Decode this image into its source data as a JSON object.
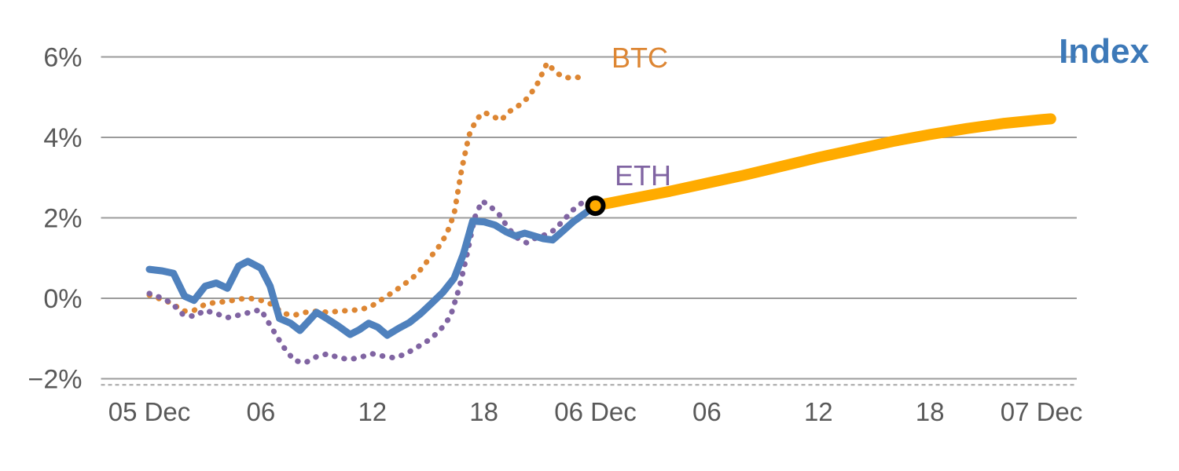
{
  "chart_data": {
    "type": "line",
    "title": "",
    "x_unit": "hours from 05 Dec 00:00",
    "xlim": [
      -2.6,
      49.9
    ],
    "ylim": [
      -2.55,
      6.6
    ],
    "grid": "horizontal",
    "x_ticks": [
      {
        "pos": 0,
        "label": "05 Dec"
      },
      {
        "pos": 6,
        "label": "06"
      },
      {
        "pos": 12,
        "label": "12"
      },
      {
        "pos": 18,
        "label": "18"
      },
      {
        "pos": 24,
        "label": "06 Dec"
      },
      {
        "pos": 30,
        "label": "06"
      },
      {
        "pos": 36,
        "label": "12"
      },
      {
        "pos": 42,
        "label": "18"
      },
      {
        "pos": 48,
        "label": "07 Dec"
      }
    ],
    "y_ticks": [
      {
        "pos": 6,
        "label": "6%"
      },
      {
        "pos": 4,
        "label": "4%"
      },
      {
        "pos": 2,
        "label": "2%"
      },
      {
        "pos": 0,
        "label": "0%"
      },
      {
        "pos": -2,
        "label": "−2%"
      }
    ],
    "axis_line": {
      "pos": -2.15,
      "style": "dashed"
    },
    "series": [
      {
        "name": "BTC",
        "color": "#dd8633",
        "style": "dotted",
        "width": 7,
        "points": [
          [
            0,
            0.08
          ],
          [
            0.6,
            -0.02
          ],
          [
            1.2,
            -0.12
          ],
          [
            1.8,
            -0.32
          ],
          [
            2.4,
            -0.3
          ],
          [
            3.0,
            -0.15
          ],
          [
            3.6,
            -0.1
          ],
          [
            4.2,
            -0.08
          ],
          [
            4.8,
            -0.02
          ],
          [
            5.4,
            0.0
          ],
          [
            6.0,
            -0.05
          ],
          [
            6.6,
            -0.15
          ],
          [
            7.2,
            -0.38
          ],
          [
            7.8,
            -0.42
          ],
          [
            8.4,
            -0.35
          ],
          [
            9.0,
            -0.32
          ],
          [
            9.6,
            -0.35
          ],
          [
            10.2,
            -0.32
          ],
          [
            10.8,
            -0.3
          ],
          [
            11.4,
            -0.28
          ],
          [
            12.0,
            -0.18
          ],
          [
            12.6,
            0.0
          ],
          [
            13.2,
            0.18
          ],
          [
            13.8,
            0.38
          ],
          [
            14.4,
            0.6
          ],
          [
            15.0,
            0.95
          ],
          [
            15.6,
            1.3
          ],
          [
            16.0,
            1.6
          ],
          [
            16.4,
            2.1
          ],
          [
            16.8,
            3.2
          ],
          [
            17.2,
            4.05
          ],
          [
            17.6,
            4.45
          ],
          [
            18.0,
            4.62
          ],
          [
            18.4,
            4.55
          ],
          [
            18.9,
            4.42
          ],
          [
            19.4,
            4.65
          ],
          [
            19.9,
            4.8
          ],
          [
            20.4,
            5.0
          ],
          [
            20.9,
            5.35
          ],
          [
            21.4,
            5.85
          ],
          [
            21.9,
            5.6
          ],
          [
            22.4,
            5.48
          ],
          [
            23.0,
            5.5
          ],
          [
            23.5,
            5.42
          ]
        ]
      },
      {
        "name": "ETH",
        "color": "#8064a2",
        "style": "dotted",
        "width": 7,
        "points": [
          [
            0,
            0.12
          ],
          [
            0.6,
            0.02
          ],
          [
            1.2,
            -0.12
          ],
          [
            1.8,
            -0.4
          ],
          [
            2.4,
            -0.45
          ],
          [
            3.0,
            -0.3
          ],
          [
            3.6,
            -0.38
          ],
          [
            4.2,
            -0.48
          ],
          [
            4.8,
            -0.42
          ],
          [
            5.4,
            -0.35
          ],
          [
            6.0,
            -0.28
          ],
          [
            6.6,
            -0.75
          ],
          [
            7.2,
            -1.2
          ],
          [
            7.8,
            -1.55
          ],
          [
            8.4,
            -1.6
          ],
          [
            9.0,
            -1.45
          ],
          [
            9.6,
            -1.38
          ],
          [
            10.2,
            -1.48
          ],
          [
            10.8,
            -1.52
          ],
          [
            11.4,
            -1.46
          ],
          [
            12.0,
            -1.38
          ],
          [
            12.6,
            -1.44
          ],
          [
            13.2,
            -1.48
          ],
          [
            13.8,
            -1.38
          ],
          [
            14.4,
            -1.22
          ],
          [
            15.0,
            -1.05
          ],
          [
            15.6,
            -0.82
          ],
          [
            16.2,
            -0.45
          ],
          [
            16.7,
            0.3
          ],
          [
            17.1,
            1.1
          ],
          [
            17.5,
            2.0
          ],
          [
            17.9,
            2.42
          ],
          [
            18.3,
            2.3
          ],
          [
            18.8,
            2.1
          ],
          [
            19.3,
            1.75
          ],
          [
            19.8,
            1.5
          ],
          [
            20.3,
            1.38
          ],
          [
            20.8,
            1.5
          ],
          [
            21.3,
            1.58
          ],
          [
            21.8,
            1.7
          ],
          [
            22.3,
            1.95
          ],
          [
            22.8,
            2.2
          ],
          [
            23.3,
            2.38
          ],
          [
            23.6,
            2.42
          ]
        ]
      },
      {
        "name": "Index",
        "color": "#4f81bd",
        "style": "solid",
        "width": 9,
        "points": [
          [
            0,
            0.72
          ],
          [
            0.7,
            0.68
          ],
          [
            1.3,
            0.62
          ],
          [
            1.9,
            0.05
          ],
          [
            2.4,
            -0.05
          ],
          [
            3.0,
            0.3
          ],
          [
            3.6,
            0.38
          ],
          [
            4.2,
            0.25
          ],
          [
            4.8,
            0.8
          ],
          [
            5.3,
            0.92
          ],
          [
            6.0,
            0.75
          ],
          [
            6.5,
            0.3
          ],
          [
            7.0,
            -0.5
          ],
          [
            7.6,
            -0.62
          ],
          [
            8.1,
            -0.8
          ],
          [
            8.6,
            -0.55
          ],
          [
            9.0,
            -0.35
          ],
          [
            9.6,
            -0.52
          ],
          [
            10.2,
            -0.7
          ],
          [
            10.8,
            -0.9
          ],
          [
            11.3,
            -0.78
          ],
          [
            11.8,
            -0.62
          ],
          [
            12.3,
            -0.72
          ],
          [
            12.8,
            -0.92
          ],
          [
            13.4,
            -0.75
          ],
          [
            14.0,
            -0.6
          ],
          [
            14.6,
            -0.38
          ],
          [
            15.2,
            -0.12
          ],
          [
            15.8,
            0.15
          ],
          [
            16.4,
            0.5
          ],
          [
            16.9,
            1.1
          ],
          [
            17.4,
            1.92
          ],
          [
            18.0,
            1.9
          ],
          [
            18.6,
            1.82
          ],
          [
            19.2,
            1.65
          ],
          [
            19.7,
            1.55
          ],
          [
            20.2,
            1.62
          ],
          [
            20.7,
            1.55
          ],
          [
            21.2,
            1.48
          ],
          [
            21.7,
            1.45
          ],
          [
            22.2,
            1.65
          ],
          [
            22.8,
            1.9
          ],
          [
            23.4,
            2.1
          ],
          [
            24,
            2.3
          ]
        ]
      },
      {
        "name": "Index forecast",
        "color": "#ffab00",
        "style": "solid",
        "width": 14,
        "points": [
          [
            24,
            2.3
          ],
          [
            26,
            2.48
          ],
          [
            28,
            2.66
          ],
          [
            30,
            2.86
          ],
          [
            32,
            3.06
          ],
          [
            34,
            3.28
          ],
          [
            36,
            3.5
          ],
          [
            38,
            3.7
          ],
          [
            40,
            3.9
          ],
          [
            42,
            4.07
          ],
          [
            44,
            4.22
          ],
          [
            46,
            4.35
          ],
          [
            48,
            4.44
          ],
          [
            48.5,
            4.46
          ]
        ]
      }
    ],
    "marker": {
      "x": 24,
      "y": 2.3,
      "fill": "#ffab00",
      "stroke": "#000000"
    },
    "labels": [
      {
        "text": "BTC",
        "color": "#dd8633"
      },
      {
        "text": "ETH",
        "color": "#8064a2"
      },
      {
        "text": "Index",
        "color": "#3d79b8"
      }
    ],
    "style": {
      "gridline_color": "#9b9b9b",
      "tick_label_color": "#595959",
      "axis_dash_color": "#a6a6a6"
    }
  }
}
